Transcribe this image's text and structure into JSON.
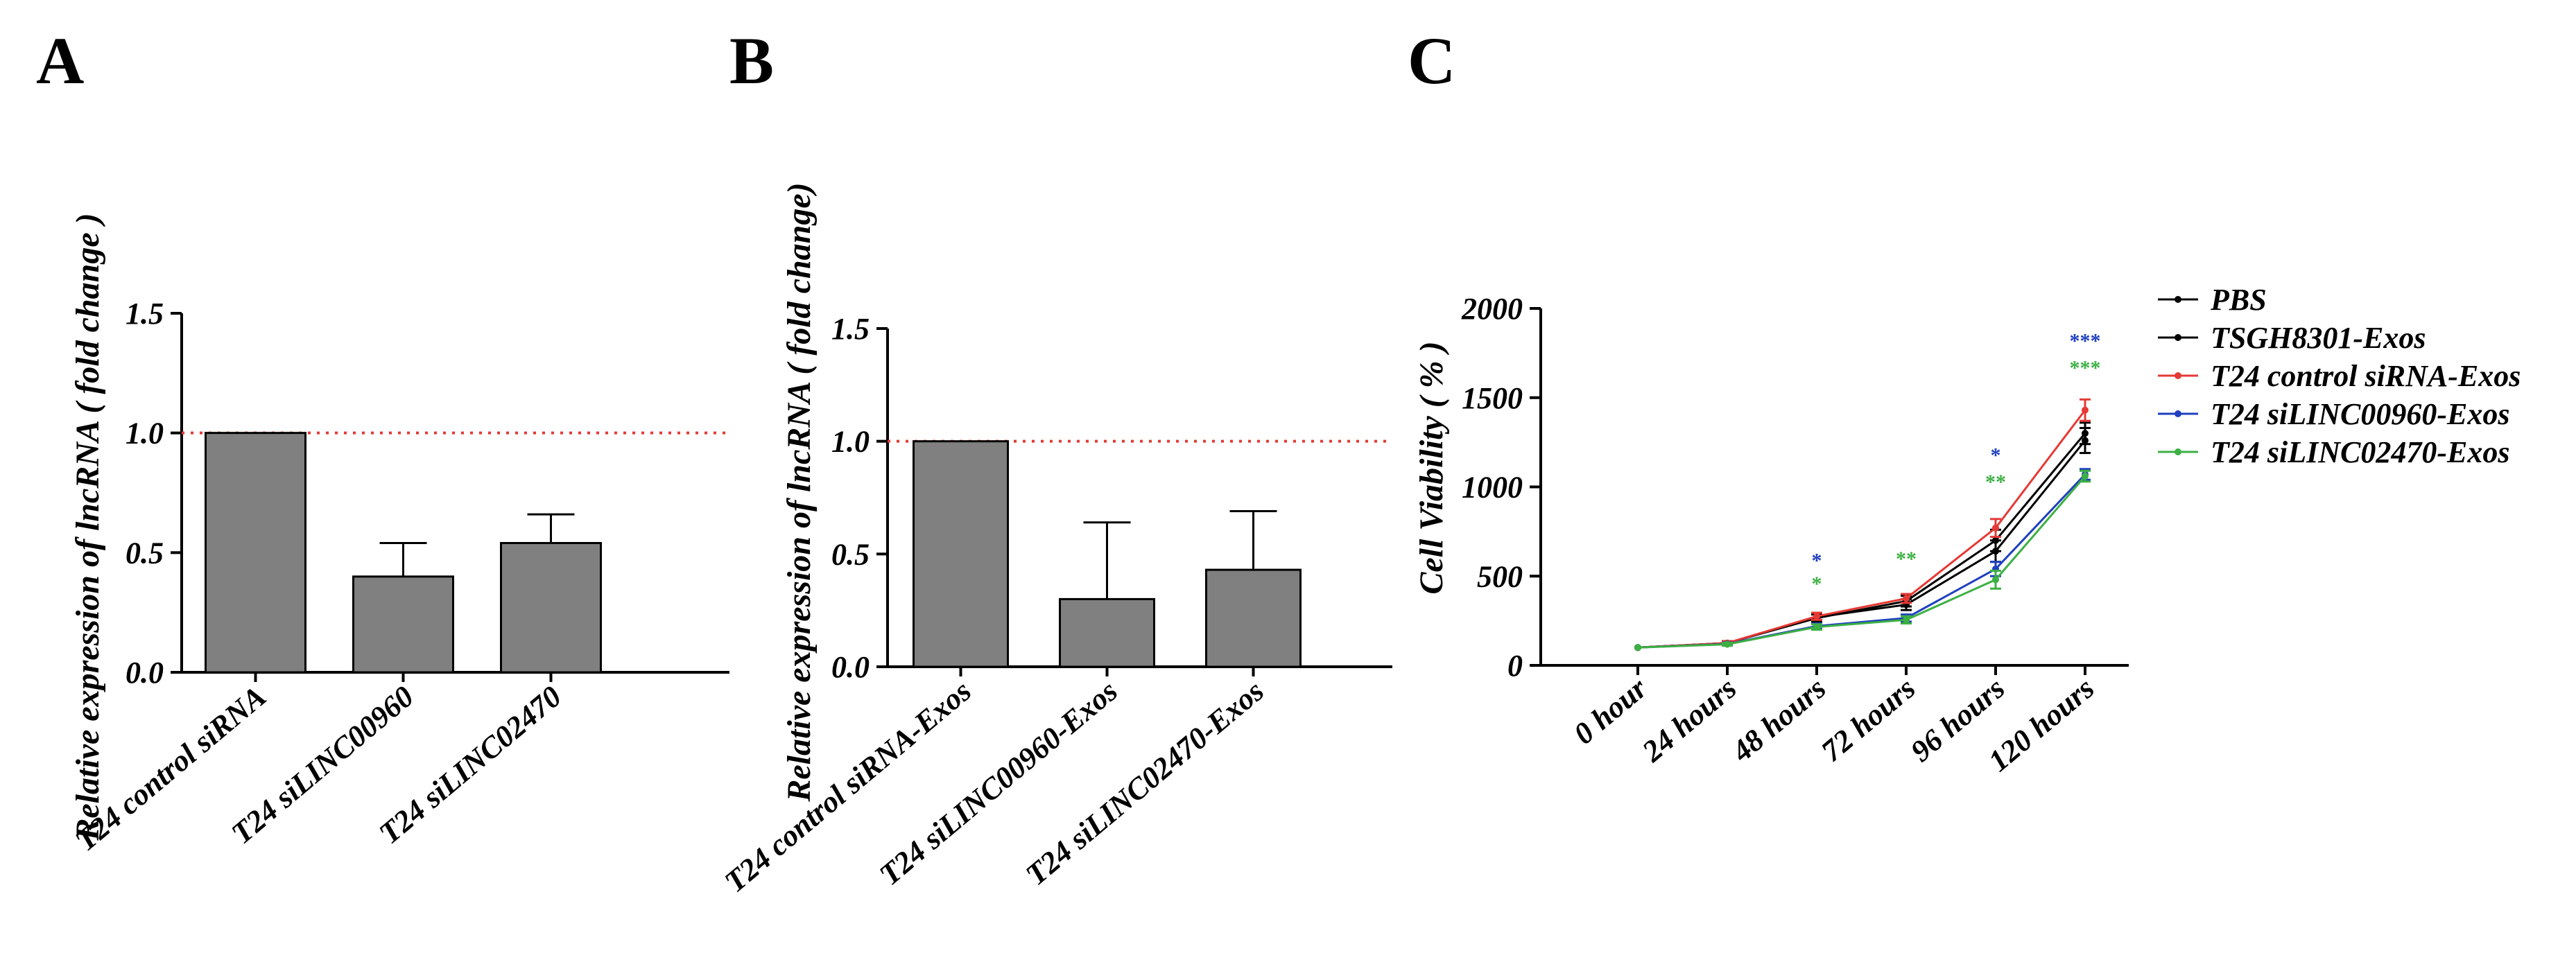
{
  "chart_data": [
    {
      "type": "bar",
      "panel": "A",
      "categories": [
        "T24 control siRNA",
        "T24 siLINC00960",
        "T24 siLINC02470"
      ],
      "values": [
        1.0,
        0.4,
        0.54
      ],
      "errors": [
        0.0,
        0.14,
        0.12
      ],
      "ylabel": "Relative expression of lncRNA ( fold change )",
      "ylim": [
        0,
        1.5
      ],
      "yticks": [
        "0.0",
        "0.5",
        "1.0",
        "1.5"
      ],
      "reference_line": 1.0,
      "bar_color": "#808080",
      "ref_color": "#e53935"
    },
    {
      "type": "bar",
      "panel": "B",
      "categories": [
        "T24 control siRNA-Exos",
        "T24 siLINC00960-Exos",
        "T24 siLINC02470-Exos"
      ],
      "values": [
        1.0,
        0.3,
        0.43
      ],
      "errors": [
        0.0,
        0.34,
        0.26
      ],
      "ylabel": "Relative expression of lncRNA ( fold change)",
      "ylim": [
        0,
        1.5
      ],
      "yticks": [
        "0.0",
        "0.5",
        "1.0",
        "1.5"
      ],
      "reference_line": 1.0,
      "bar_color": "#808080",
      "ref_color": "#e53935"
    },
    {
      "type": "line",
      "panel": "C",
      "x": [
        "0 hour",
        "24 hours",
        "48 hours",
        "72 hours",
        "96 hours",
        "120 hours"
      ],
      "ylabel": "Cell Viability ( % )",
      "ylim": [
        0,
        2000
      ],
      "yticks": [
        "0",
        "500",
        "1000",
        "1500",
        "2000"
      ],
      "series": [
        {
          "name": "PBS",
          "color": "#000000",
          "values": [
            100,
            125,
            270,
            340,
            640,
            1260
          ],
          "errors": [
            0,
            10,
            20,
            30,
            60,
            70
          ]
        },
        {
          "name": "TSGH8301-Exos",
          "color": "#000000",
          "values": [
            100,
            125,
            265,
            360,
            700,
            1300
          ],
          "errors": [
            0,
            10,
            20,
            30,
            60,
            60
          ]
        },
        {
          "name": "T24 control siRNA-Exos",
          "color": "#e53935",
          "values": [
            100,
            125,
            275,
            375,
            770,
            1430
          ],
          "errors": [
            0,
            10,
            20,
            25,
            50,
            60
          ]
        },
        {
          "name": "T24 siLINC00960-Exos",
          "color": "#1f3fbf",
          "values": [
            100,
            120,
            220,
            265,
            540,
            1070
          ],
          "errors": [
            0,
            8,
            15,
            20,
            40,
            30
          ]
        },
        {
          "name": "T24 siLINC02470-Exos",
          "color": "#3cb043",
          "values": [
            100,
            118,
            215,
            255,
            480,
            1060
          ],
          "errors": [
            0,
            8,
            15,
            20,
            50,
            30
          ]
        }
      ],
      "annotations": [
        {
          "x_index": 2,
          "label": "*",
          "color": "#1f3fbf",
          "value": 550
        },
        {
          "x_index": 2,
          "label": "*",
          "color": "#3cb043",
          "value": 420
        },
        {
          "x_index": 3,
          "label": "**",
          "color": "#3cb043",
          "value": 560
        },
        {
          "x_index": 4,
          "label": "*",
          "color": "#1f3fbf",
          "value": 1140
        },
        {
          "x_index": 4,
          "label": "**",
          "color": "#3cb043",
          "value": 990
        },
        {
          "x_index": 5,
          "label": "***",
          "color": "#1f3fbf",
          "value": 1780
        },
        {
          "x_index": 5,
          "label": "***",
          "color": "#3cb043",
          "value": 1630
        }
      ]
    }
  ],
  "panels": [
    "A",
    "B",
    "C"
  ]
}
